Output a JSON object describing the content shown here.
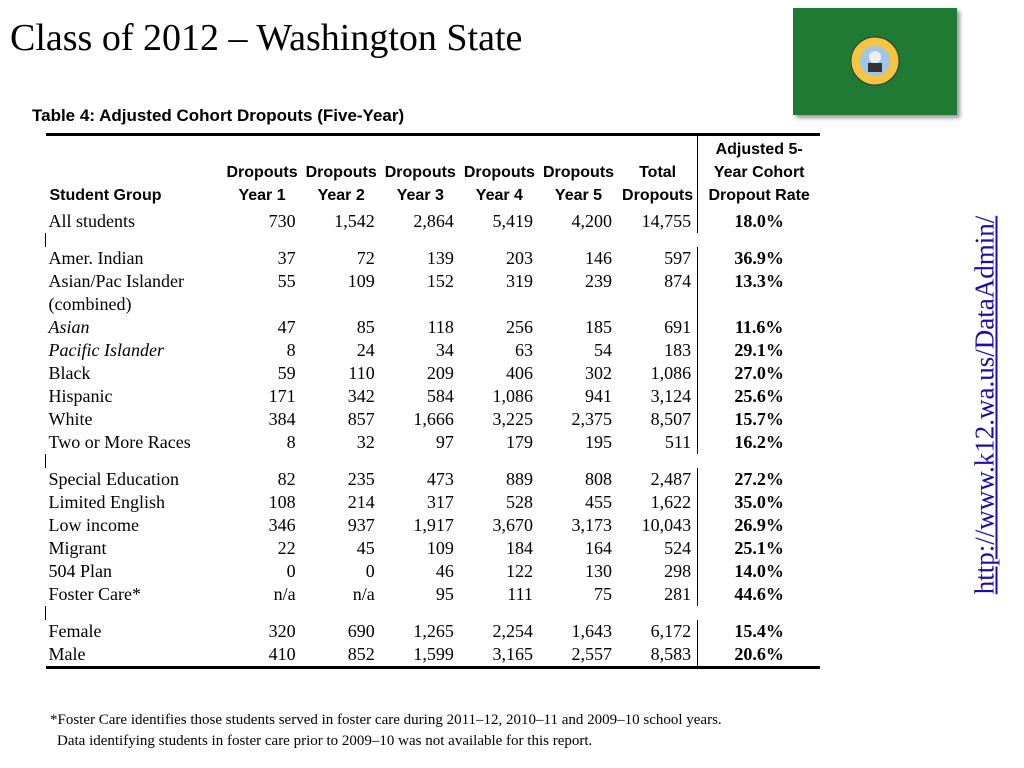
{
  "title": "Class of 2012 – Washington State",
  "url": "http://www.k12.wa.us/DataAdmin/",
  "table": {
    "caption": "Table 4:  Adjusted Cohort Dropouts (Five-Year)",
    "header": [
      [
        "Student Group"
      ],
      [
        "Dropouts",
        "Year 1"
      ],
      [
        "Dropouts",
        "Year 2"
      ],
      [
        "Dropouts",
        "Year 3"
      ],
      [
        "Dropouts",
        "Year 4"
      ],
      [
        "Dropouts",
        "Year 5"
      ],
      [
        "Total",
        "Dropouts"
      ],
      [
        "Adjusted 5-",
        "Year Cohort",
        "Dropout Rate"
      ]
    ],
    "sections": [
      [
        {
          "cells": [
            "All students",
            "730",
            "1,542",
            "2,864",
            "5,419",
            "4,200",
            "14,755",
            "18.0%"
          ]
        }
      ],
      [
        {
          "cells": [
            "Amer. Indian",
            "37",
            "72",
            "139",
            "203",
            "146",
            "597",
            "36.9%"
          ]
        },
        {
          "cells": [
            "Asian/Pac Islander (combined)",
            "55",
            "109",
            "152",
            "319",
            "239",
            "874",
            "13.3%"
          ]
        },
        {
          "cells": [
            "Asian",
            "47",
            "85",
            "118",
            "256",
            "185",
            "691",
            "11.6%"
          ],
          "italic": true
        },
        {
          "cells": [
            "Pacific Islander",
            "8",
            "24",
            "34",
            "63",
            "54",
            "183",
            "29.1%"
          ],
          "italic": true
        },
        {
          "cells": [
            "Black",
            "59",
            "110",
            "209",
            "406",
            "302",
            "1,086",
            "27.0%"
          ]
        },
        {
          "cells": [
            "Hispanic",
            "171",
            "342",
            "584",
            "1,086",
            "941",
            "3,124",
            "25.6%"
          ]
        },
        {
          "cells": [
            "White",
            "384",
            "857",
            "1,666",
            "3,225",
            "2,375",
            "8,507",
            "15.7%"
          ]
        },
        {
          "cells": [
            "Two or More Races",
            "8",
            "32",
            "97",
            "179",
            "195",
            "511",
            "16.2%"
          ]
        }
      ],
      [
        {
          "cells": [
            "Special Education",
            "82",
            "235",
            "473",
            "889",
            "808",
            "2,487",
            "27.2%"
          ]
        },
        {
          "cells": [
            "Limited English",
            "108",
            "214",
            "317",
            "528",
            "455",
            "1,622",
            "35.0%"
          ]
        },
        {
          "cells": [
            "Low income",
            "346",
            "937",
            "1,917",
            "3,670",
            "3,173",
            "10,043",
            "26.9%"
          ]
        },
        {
          "cells": [
            "Migrant",
            "22",
            "45",
            "109",
            "184",
            "164",
            "524",
            "25.1%"
          ]
        },
        {
          "cells": [
            "504 Plan",
            "0",
            "0",
            "46",
            "122",
            "130",
            "298",
            "14.0%"
          ]
        },
        {
          "cells": [
            "Foster Care*",
            "n/a",
            "n/a",
            "95",
            "111",
            "75",
            "281",
            "44.6%"
          ]
        }
      ],
      [
        {
          "cells": [
            "Female",
            "320",
            "690",
            "1,265",
            "2,254",
            "1,643",
            "6,172",
            "15.4%"
          ]
        },
        {
          "cells": [
            "Male",
            "410",
            "852",
            "1,599",
            "3,165",
            "2,557",
            "8,583",
            "20.6%"
          ]
        }
      ]
    ],
    "footnote": [
      "*Foster Care identifies those students served in foster care during 2011–12, 2010–11 and 2009–10 school years.",
      "Data identifying students in foster care prior to 2009–10 was not available for this report."
    ]
  }
}
